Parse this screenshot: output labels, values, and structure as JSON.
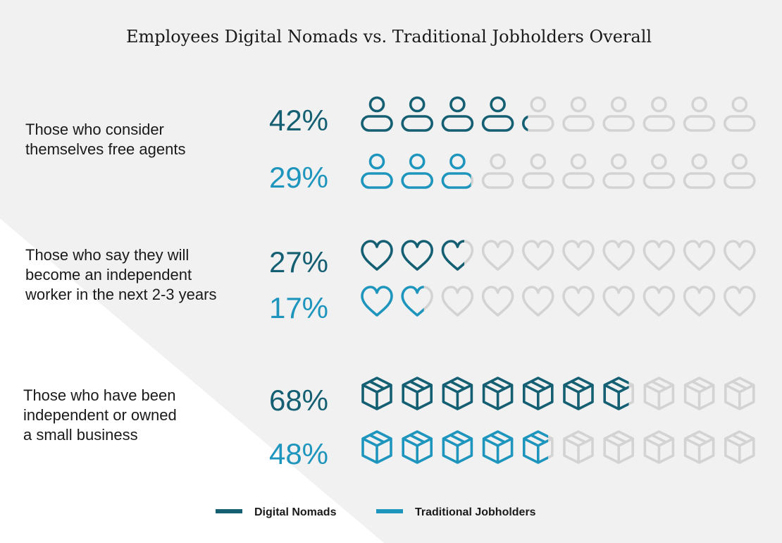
{
  "chart_data": {
    "type": "pictograph",
    "title": "Employees Digital Nomads vs. Traditional Jobholders Overall",
    "icons_per_row": 10,
    "groups": [
      {
        "label_lines": [
          "Those who consider",
          "themselves free agents"
        ],
        "icon": "person-icon",
        "values": [
          {
            "series": "Digital Nomads",
            "value": 42,
            "label": "42%"
          },
          {
            "series": "Traditional Jobholders",
            "value": 29,
            "label": "29%"
          }
        ]
      },
      {
        "label_lines": [
          "Those who say they will",
          "become an independent",
          "worker in the next 2-3 years"
        ],
        "icon": "heart-icon",
        "values": [
          {
            "series": "Digital Nomads",
            "value": 27,
            "label": "27%"
          },
          {
            "series": "Traditional Jobholders",
            "value": 17,
            "label": "17%"
          }
        ]
      },
      {
        "label_lines": [
          "Those who have been",
          "independent or owned",
          "a small business"
        ],
        "icon": "box-icon",
        "values": [
          {
            "series": "Digital Nomads",
            "value": 68,
            "label": "68%"
          },
          {
            "series": "Traditional Jobholders",
            "value": 48,
            "label": "48%"
          }
        ]
      }
    ],
    "legend": [
      {
        "name": "Digital Nomads",
        "color": "#155f73"
      },
      {
        "name": "Traditional Jobholders",
        "color": "#1e95bc"
      }
    ]
  },
  "colors": {
    "inactive": "#d3d3d3",
    "label_text": "#1a1a1a",
    "background_shade": "#f1f1f2",
    "background_light": "#ffffff"
  }
}
